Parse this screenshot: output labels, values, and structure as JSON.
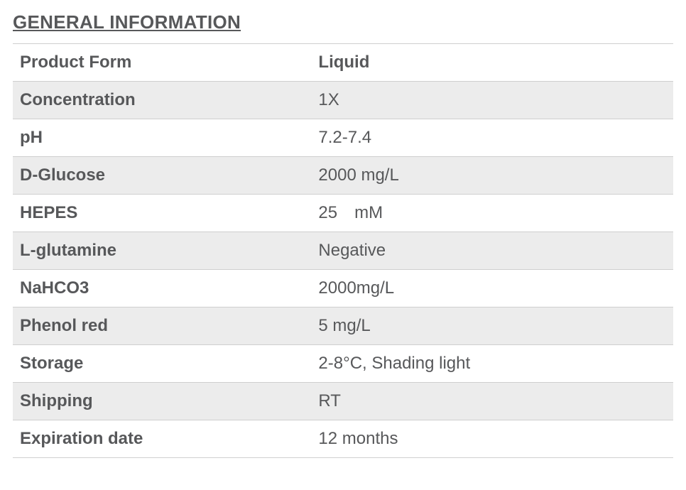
{
  "section": {
    "title": "GENERAL INFORMATION",
    "title_color": "#57585a",
    "title_fontsize": 26,
    "title_weight": 700,
    "title_underline": true
  },
  "table": {
    "type": "table",
    "row_alt_colors": [
      "#ffffff",
      "#ececec"
    ],
    "border_color": "#cfcfcf",
    "text_color": "#57585a",
    "key_fontsize": 24,
    "key_weight": 700,
    "value_fontsize": 24,
    "value_weight": 400,
    "first_row_value_weight": 700,
    "column_widths_pct": [
      45,
      55
    ],
    "rows": [
      {
        "key": "Product Form",
        "value": "Liquid"
      },
      {
        "key": "Concentration",
        "value": "1X"
      },
      {
        "key": "pH",
        "value": "7.2-7.4"
      },
      {
        "key": "D-Glucose",
        "value": "2000 mg/L"
      },
      {
        "key": "HEPES",
        "value": "25 mM"
      },
      {
        "key": "L-glutamine",
        "value": "Negative"
      },
      {
        "key": "NaHCO3",
        "value": "2000mg/L"
      },
      {
        "key": "Phenol red",
        "value": "5 mg/L"
      },
      {
        "key": "Storage",
        "value": "2-8°C, Shading light"
      },
      {
        "key": "Shipping",
        "value": "RT"
      },
      {
        "key": "Expiration date",
        "value": "12 months"
      }
    ]
  }
}
